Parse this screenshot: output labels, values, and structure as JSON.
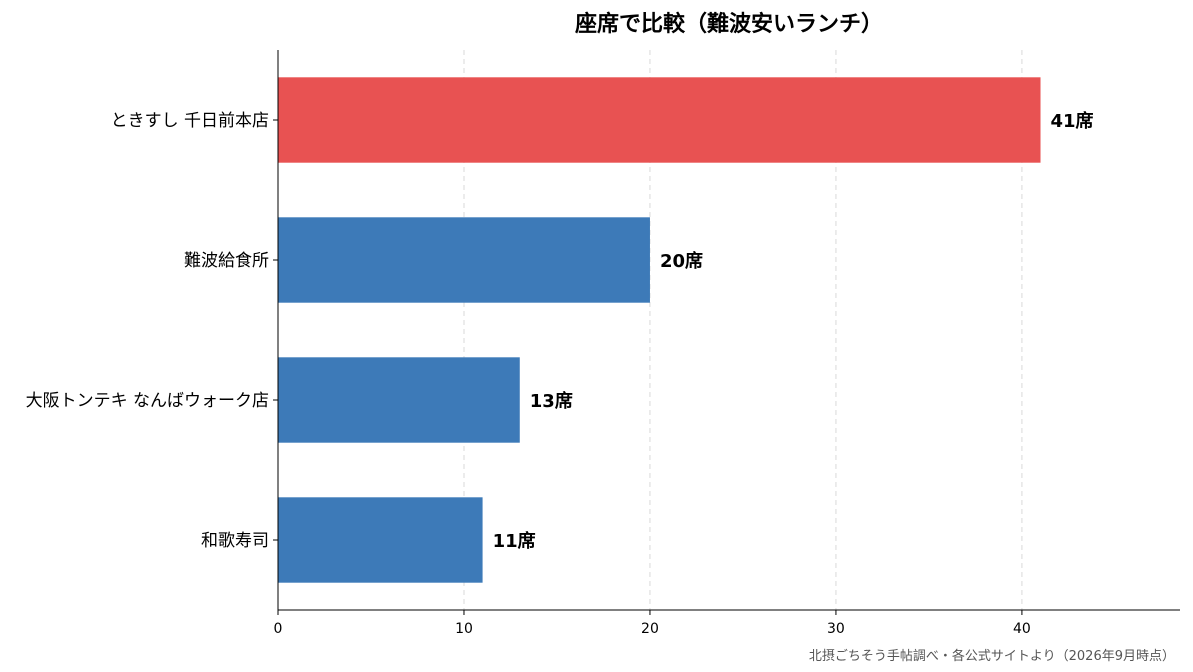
{
  "chart_data": {
    "type": "bar",
    "orientation": "horizontal",
    "title": "座席で比較（難波安いランチ）",
    "categories": [
      "ときすし 千日前本店",
      "難波給食所",
      "大阪トンテキ なんばウォーク店",
      "和歌寿司"
    ],
    "values": [
      41,
      20,
      13,
      11
    ],
    "value_labels": [
      "41席",
      "20席",
      "13席",
      "11席"
    ],
    "highlight_index": 0,
    "colors": {
      "highlight": "#e85252",
      "default": "#3d7ab8"
    },
    "xlim": [
      0,
      48.5
    ],
    "xticks": [
      0,
      10,
      20,
      30,
      40
    ],
    "xlabel": "",
    "ylabel": "",
    "grid": "vertical-dashed",
    "legend": "none"
  },
  "source_note": "北摂ごちそう手帖調べ・各公式サイトより（2026年9月時点）"
}
